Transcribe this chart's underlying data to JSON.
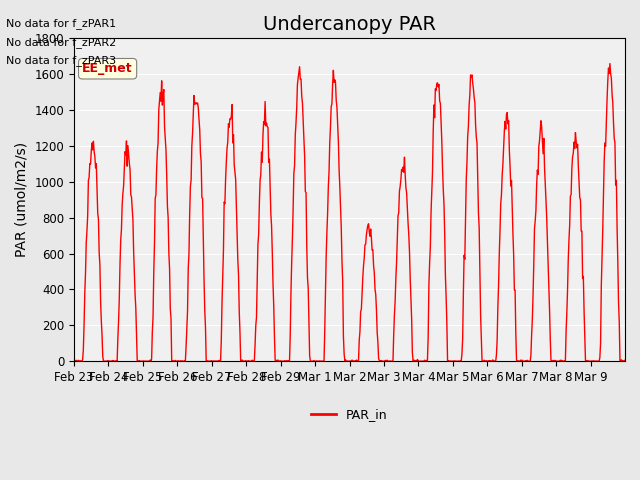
{
  "title": "Undercanopy PAR",
  "ylabel": "PAR (umol/m2/s)",
  "ylim": [
    0,
    1800
  ],
  "yticks": [
    0,
    200,
    400,
    600,
    800,
    1000,
    1200,
    1400,
    1600,
    1800
  ],
  "line_color": "#FF0000",
  "line_width": 1.0,
  "legend_label": "PAR_in",
  "fig_bg_color": "#E8E8E8",
  "plot_bg_color": "#F0F0F0",
  "annotations": [
    "No data for f_zPAR1",
    "No data for f_zPAR2",
    "No data for f_zPAR3"
  ],
  "annotation_box_label": "EE_met",
  "x_tick_labels": [
    "Feb 23",
    "Feb 24",
    "Feb 25",
    "Feb 26",
    "Feb 27",
    "Feb 28",
    "Feb 29",
    "Mar 1",
    "Mar 2",
    "Mar 3",
    "Mar 4",
    "Mar 5",
    "Mar 6",
    "Mar 7",
    "Mar 8",
    "Mar 9"
  ],
  "day_peaks": [
    1220,
    1180,
    1500,
    1480,
    1370,
    1380,
    1580,
    1560,
    750,
    1100,
    1580,
    1580,
    1340,
    1270,
    1240,
    1650
  ],
  "title_fontsize": 14,
  "tick_fontsize": 8.5,
  "ylabel_fontsize": 10
}
